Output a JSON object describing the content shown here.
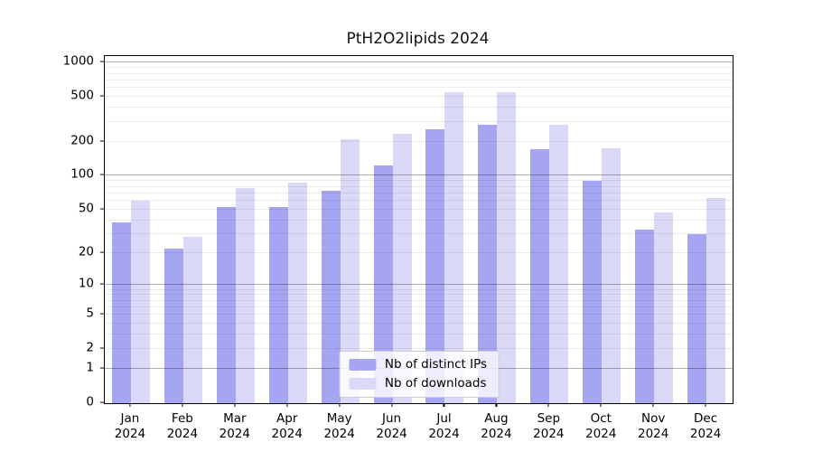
{
  "title": "PtH2O2lipids 2024",
  "chart_data": {
    "type": "bar",
    "title": "PtH2O2lipids 2024",
    "xlabel": "",
    "ylabel": "",
    "y_scale": "log10(1+x)",
    "ymax_log_units": 3.06,
    "y_ticks": [
      1000,
      500,
      200,
      100,
      50,
      20,
      10,
      5,
      2,
      1,
      0
    ],
    "grid": true,
    "legend_position": "lower center",
    "categories": [
      "Jan 2024",
      "Feb 2024",
      "Mar 2024",
      "Apr 2024",
      "May 2024",
      "Jun 2024",
      "Jul 2024",
      "Aug 2024",
      "Sep 2024",
      "Oct 2024",
      "Nov 2024",
      "Dec 2024"
    ],
    "series": [
      {
        "name": "Nb of distinct IPs",
        "color": "#a5a5f2",
        "values": [
          38,
          22,
          53,
          53,
          74,
          123,
          260,
          285,
          172,
          90,
          33,
          30
        ]
      },
      {
        "name": "Nb of downloads",
        "color": "#dadaf8",
        "values": [
          60,
          28,
          78,
          87,
          212,
          235,
          548,
          548,
          283,
          175,
          47,
          63
        ]
      }
    ]
  },
  "colors": {
    "major_gridline": "#b0b0b0",
    "minor_gridline": "#ececec",
    "axis": "#000000",
    "background": "#ffffff"
  }
}
